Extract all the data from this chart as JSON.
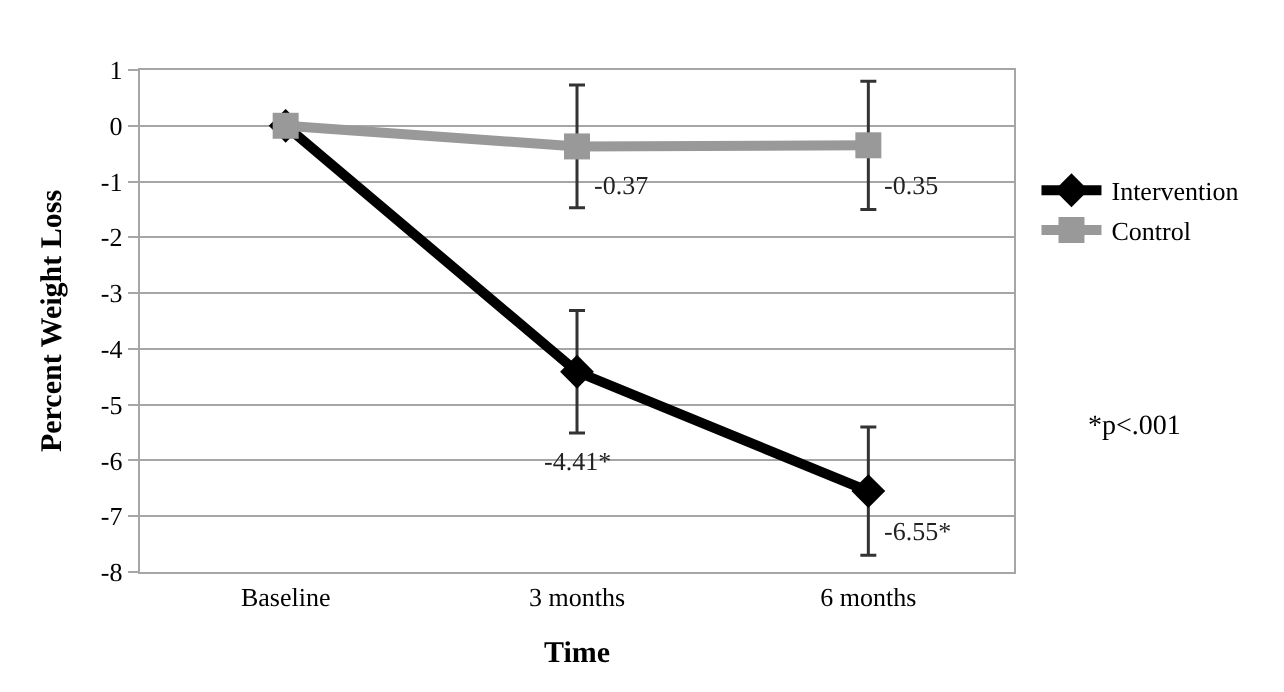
{
  "chart_data": {
    "type": "line",
    "xlabel": "Time",
    "ylabel": "Percent Weight Loss",
    "categories": [
      "Baseline",
      "3 months",
      "6 months"
    ],
    "series": [
      {
        "name": "Intervention",
        "color": "#000000",
        "marker": "diamond",
        "values": [
          0,
          -4.41,
          -6.55
        ],
        "errors": [
          null,
          1.1,
          1.15
        ],
        "value_labels": [
          null,
          "-4.41*",
          "-6.55*"
        ]
      },
      {
        "name": "Control",
        "color": "#999999",
        "marker": "square",
        "values": [
          0,
          -0.37,
          -0.35
        ],
        "errors": [
          null,
          1.1,
          1.15
        ],
        "value_labels": [
          null,
          "-0.37",
          "-0.35"
        ]
      }
    ],
    "ylim": [
      -8,
      1
    ],
    "yticks": [
      -8,
      -7,
      -6,
      -5,
      -4,
      -3,
      -2,
      -1,
      0,
      1
    ],
    "grid": "y",
    "legend": "right",
    "line_style": "solid",
    "annotations": [
      "*p<.001"
    ]
  }
}
